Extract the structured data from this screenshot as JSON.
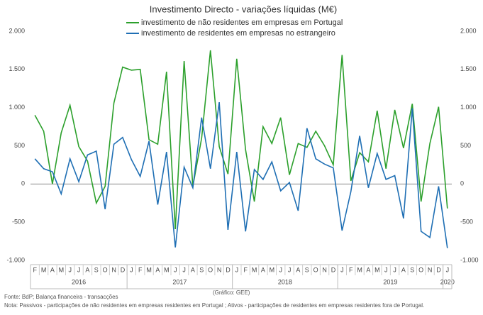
{
  "chart_data": {
    "type": "line",
    "title": "Investimento Directo - variações líquidas (M€)",
    "categories": [
      "F",
      "M",
      "A",
      "M",
      "J",
      "J",
      "A",
      "S",
      "O",
      "N",
      "D",
      "J",
      "F",
      "M",
      "A",
      "M",
      "J",
      "J",
      "A",
      "S",
      "O",
      "N",
      "D",
      "J",
      "F",
      "M",
      "A",
      "M",
      "J",
      "J",
      "A",
      "S",
      "O",
      "N",
      "D",
      "J",
      "F",
      "M",
      "A",
      "M",
      "J",
      "J",
      "A",
      "S",
      "O",
      "N",
      "D",
      "J"
    ],
    "years": [
      "2016",
      "2017",
      "2018",
      "2019",
      "2020"
    ],
    "series": [
      {
        "name": "investimento de não residentes em empresas em Portugal",
        "color": "#2ca02c",
        "values": [
          900,
          690,
          0,
          670,
          1030,
          490,
          300,
          -250,
          -30,
          1060,
          1530,
          1490,
          1500,
          580,
          520,
          1470,
          -590,
          1610,
          -30,
          600,
          1750,
          490,
          130,
          1640,
          450,
          -230,
          750,
          530,
          870,
          120,
          530,
          480,
          690,
          500,
          250,
          1690,
          40,
          410,
          290,
          960,
          200,
          970,
          470,
          1050,
          -230,
          530,
          1010,
          -320
        ]
      },
      {
        "name": "investimento de residentes em empresas no estrangeiro",
        "color": "#1f6fb4",
        "values": [
          330,
          200,
          160,
          -130,
          330,
          30,
          380,
          430,
          -330,
          520,
          610,
          320,
          100,
          560,
          -270,
          420,
          -830,
          220,
          -50,
          870,
          200,
          1070,
          -600,
          420,
          -620,
          190,
          60,
          290,
          -90,
          20,
          -350,
          730,
          330,
          260,
          210,
          -610,
          -100,
          630,
          -50,
          400,
          60,
          110,
          -450,
          990,
          -620,
          -700,
          -30,
          -840
        ]
      }
    ],
    "ylim": [
      -1000,
      2000
    ],
    "yticks": [
      {
        "value": -1000,
        "label": "-1.000"
      },
      {
        "value": -500,
        "label": "-500"
      },
      0,
      {
        "value": 500,
        "label": "500"
      },
      {
        "value": 1000,
        "label": "1.000"
      },
      {
        "value": 1500,
        "label": "1.500"
      },
      {
        "value": 2000,
        "label": "2.000"
      }
    ],
    "y2lim": [
      -1000,
      2000
    ],
    "y2ticks": [
      {
        "value": -1000,
        "label": "-1.000"
      },
      {
        "value": -500,
        "label": "-500"
      },
      0,
      {
        "value": 500,
        "label": "500"
      },
      {
        "value": 1000,
        "label": "1.000"
      },
      {
        "value": 1500,
        "label": "1.500"
      },
      {
        "value": 2000,
        "label": "2.000"
      }
    ],
    "source": "Fonte: BdP; Balança financeira - transacções",
    "credit": "(Gráfico: GEE)",
    "note": "Nota: Passivos - participações de não residentes em empresas residentes em Portugal ; Ativos - participações de residentes em empresas residentes fora de Portugal."
  }
}
